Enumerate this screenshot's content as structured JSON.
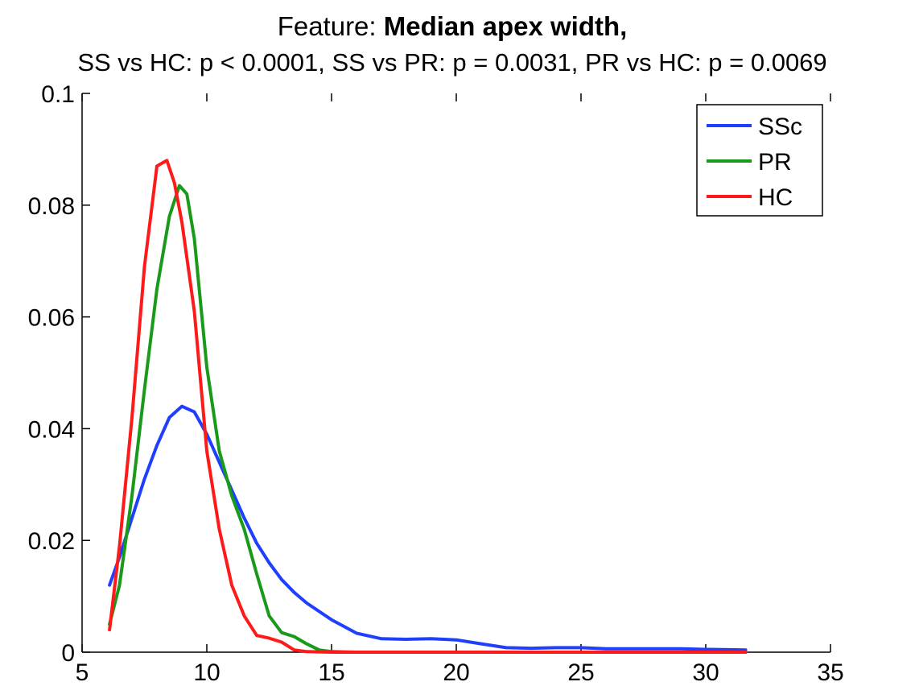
{
  "chart_data": {
    "type": "line",
    "title_prefix": "Feature: ",
    "title_bold": "Median apex width,",
    "subtitle": "SS vs HC: p < 0.0001, SS vs PR: p = 0.0031, PR vs HC: p = 0.0069",
    "xlabel": "",
    "ylabel": "",
    "xlim": [
      5,
      35
    ],
    "ylim": [
      0,
      0.1
    ],
    "xticks": [
      5,
      10,
      15,
      20,
      25,
      30,
      35
    ],
    "yticks": [
      0,
      0.02,
      0.04,
      0.06,
      0.08,
      0.1
    ],
    "xtick_labels": [
      "5",
      "10",
      "15",
      "20",
      "25",
      "30",
      "35"
    ],
    "ytick_labels": [
      "0",
      "0.02",
      "0.04",
      "0.06",
      "0.08",
      "0.1"
    ],
    "grid": false,
    "legend_position": "top-right",
    "series": [
      {
        "name": "SSc",
        "color": "#1f3fff",
        "x": [
          6.1,
          6.5,
          7.0,
          7.5,
          8.0,
          8.5,
          9.0,
          9.5,
          10.0,
          10.5,
          11.0,
          11.5,
          12.0,
          12.5,
          13.0,
          13.5,
          14.0,
          15.0,
          16.0,
          17.0,
          18.0,
          19.0,
          20.0,
          21.0,
          22.0,
          23.0,
          24.0,
          25.0,
          26.0,
          27.0,
          28.0,
          29.0,
          30.0,
          31.6
        ],
        "y": [
          0.012,
          0.017,
          0.024,
          0.031,
          0.037,
          0.042,
          0.044,
          0.043,
          0.039,
          0.034,
          0.029,
          0.024,
          0.0195,
          0.016,
          0.013,
          0.0107,
          0.0088,
          0.0058,
          0.0034,
          0.0024,
          0.0023,
          0.0024,
          0.0022,
          0.0015,
          0.0008,
          0.0007,
          0.0008,
          0.0008,
          0.0006,
          0.0006,
          0.0006,
          0.0006,
          0.0005,
          0.0004
        ]
      },
      {
        "name": "PR",
        "color": "#1a9a1a",
        "x": [
          6.1,
          6.5,
          7.0,
          7.5,
          8.0,
          8.5,
          8.9,
          9.2,
          9.5,
          10.0,
          10.5,
          11.0,
          11.5,
          12.0,
          12.5,
          13.0,
          13.5,
          14.0,
          14.5,
          15.0,
          16.0,
          18.0,
          20.0,
          25.0,
          31.6
        ],
        "y": [
          0.005,
          0.012,
          0.028,
          0.047,
          0.065,
          0.078,
          0.0835,
          0.082,
          0.074,
          0.051,
          0.036,
          0.028,
          0.022,
          0.014,
          0.0065,
          0.0035,
          0.0028,
          0.0015,
          0.0004,
          0.0001,
          0.0,
          0.0,
          0.0,
          0.0,
          0.0
        ]
      },
      {
        "name": "HC",
        "color": "#ff1a1a",
        "x": [
          6.1,
          6.5,
          7.0,
          7.5,
          8.0,
          8.4,
          8.7,
          9.0,
          9.5,
          10.0,
          10.5,
          11.0,
          11.5,
          12.0,
          12.5,
          13.0,
          13.5,
          14.0,
          15.0,
          20.0,
          25.0,
          31.6
        ],
        "y": [
          0.004,
          0.019,
          0.042,
          0.069,
          0.087,
          0.088,
          0.084,
          0.077,
          0.061,
          0.036,
          0.022,
          0.012,
          0.0065,
          0.003,
          0.0025,
          0.0018,
          0.0004,
          0.0001,
          0.0,
          0.0,
          0.0,
          0.0
        ]
      }
    ]
  }
}
